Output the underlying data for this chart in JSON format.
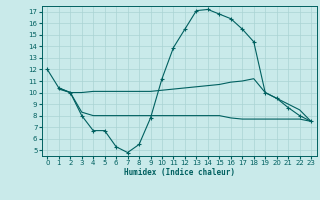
{
  "xlabel": "Humidex (Indice chaleur)",
  "xlim": [
    -0.5,
    23.5
  ],
  "ylim": [
    4.5,
    17.5
  ],
  "yticks": [
    5,
    6,
    7,
    8,
    9,
    10,
    11,
    12,
    13,
    14,
    15,
    16,
    17
  ],
  "xticks": [
    0,
    1,
    2,
    3,
    4,
    5,
    6,
    7,
    8,
    9,
    10,
    11,
    12,
    13,
    14,
    15,
    16,
    17,
    18,
    19,
    20,
    21,
    22,
    23
  ],
  "bg_color": "#c9eaea",
  "grid_color": "#aad4d4",
  "line_color": "#006060",
  "line1_x": [
    0,
    1,
    2,
    3,
    4,
    5,
    6,
    7,
    8,
    9,
    10,
    11,
    12,
    13,
    14,
    15,
    16,
    17,
    18,
    19,
    20,
    21,
    22,
    23
  ],
  "line1_y": [
    12.0,
    10.4,
    10.0,
    8.0,
    6.7,
    6.7,
    5.3,
    4.8,
    5.5,
    7.8,
    11.2,
    13.9,
    15.5,
    17.1,
    17.2,
    16.8,
    16.4,
    15.5,
    14.4,
    10.0,
    9.5,
    8.7,
    8.0,
    7.5
  ],
  "line2_x": [
    1,
    2,
    3,
    4,
    5,
    6,
    7,
    8,
    9,
    10,
    11,
    12,
    13,
    14,
    15,
    16,
    17,
    18,
    19,
    20,
    21,
    22,
    23
  ],
  "line2_y": [
    10.4,
    10.0,
    10.0,
    10.1,
    10.1,
    10.1,
    10.1,
    10.1,
    10.1,
    10.2,
    10.3,
    10.4,
    10.5,
    10.6,
    10.7,
    10.9,
    11.0,
    11.2,
    10.0,
    9.5,
    9.0,
    8.5,
    7.5
  ],
  "line3_x": [
    1,
    2,
    3,
    4,
    5,
    6,
    7,
    8,
    9,
    10,
    11,
    12,
    13,
    14,
    15,
    16,
    17,
    18,
    19,
    20,
    21,
    22,
    23
  ],
  "line3_y": [
    10.3,
    10.0,
    8.3,
    8.0,
    8.0,
    8.0,
    8.0,
    8.0,
    8.0,
    8.0,
    8.0,
    8.0,
    8.0,
    8.0,
    8.0,
    7.8,
    7.7,
    7.7,
    7.7,
    7.7,
    7.7,
    7.7,
    7.5
  ]
}
